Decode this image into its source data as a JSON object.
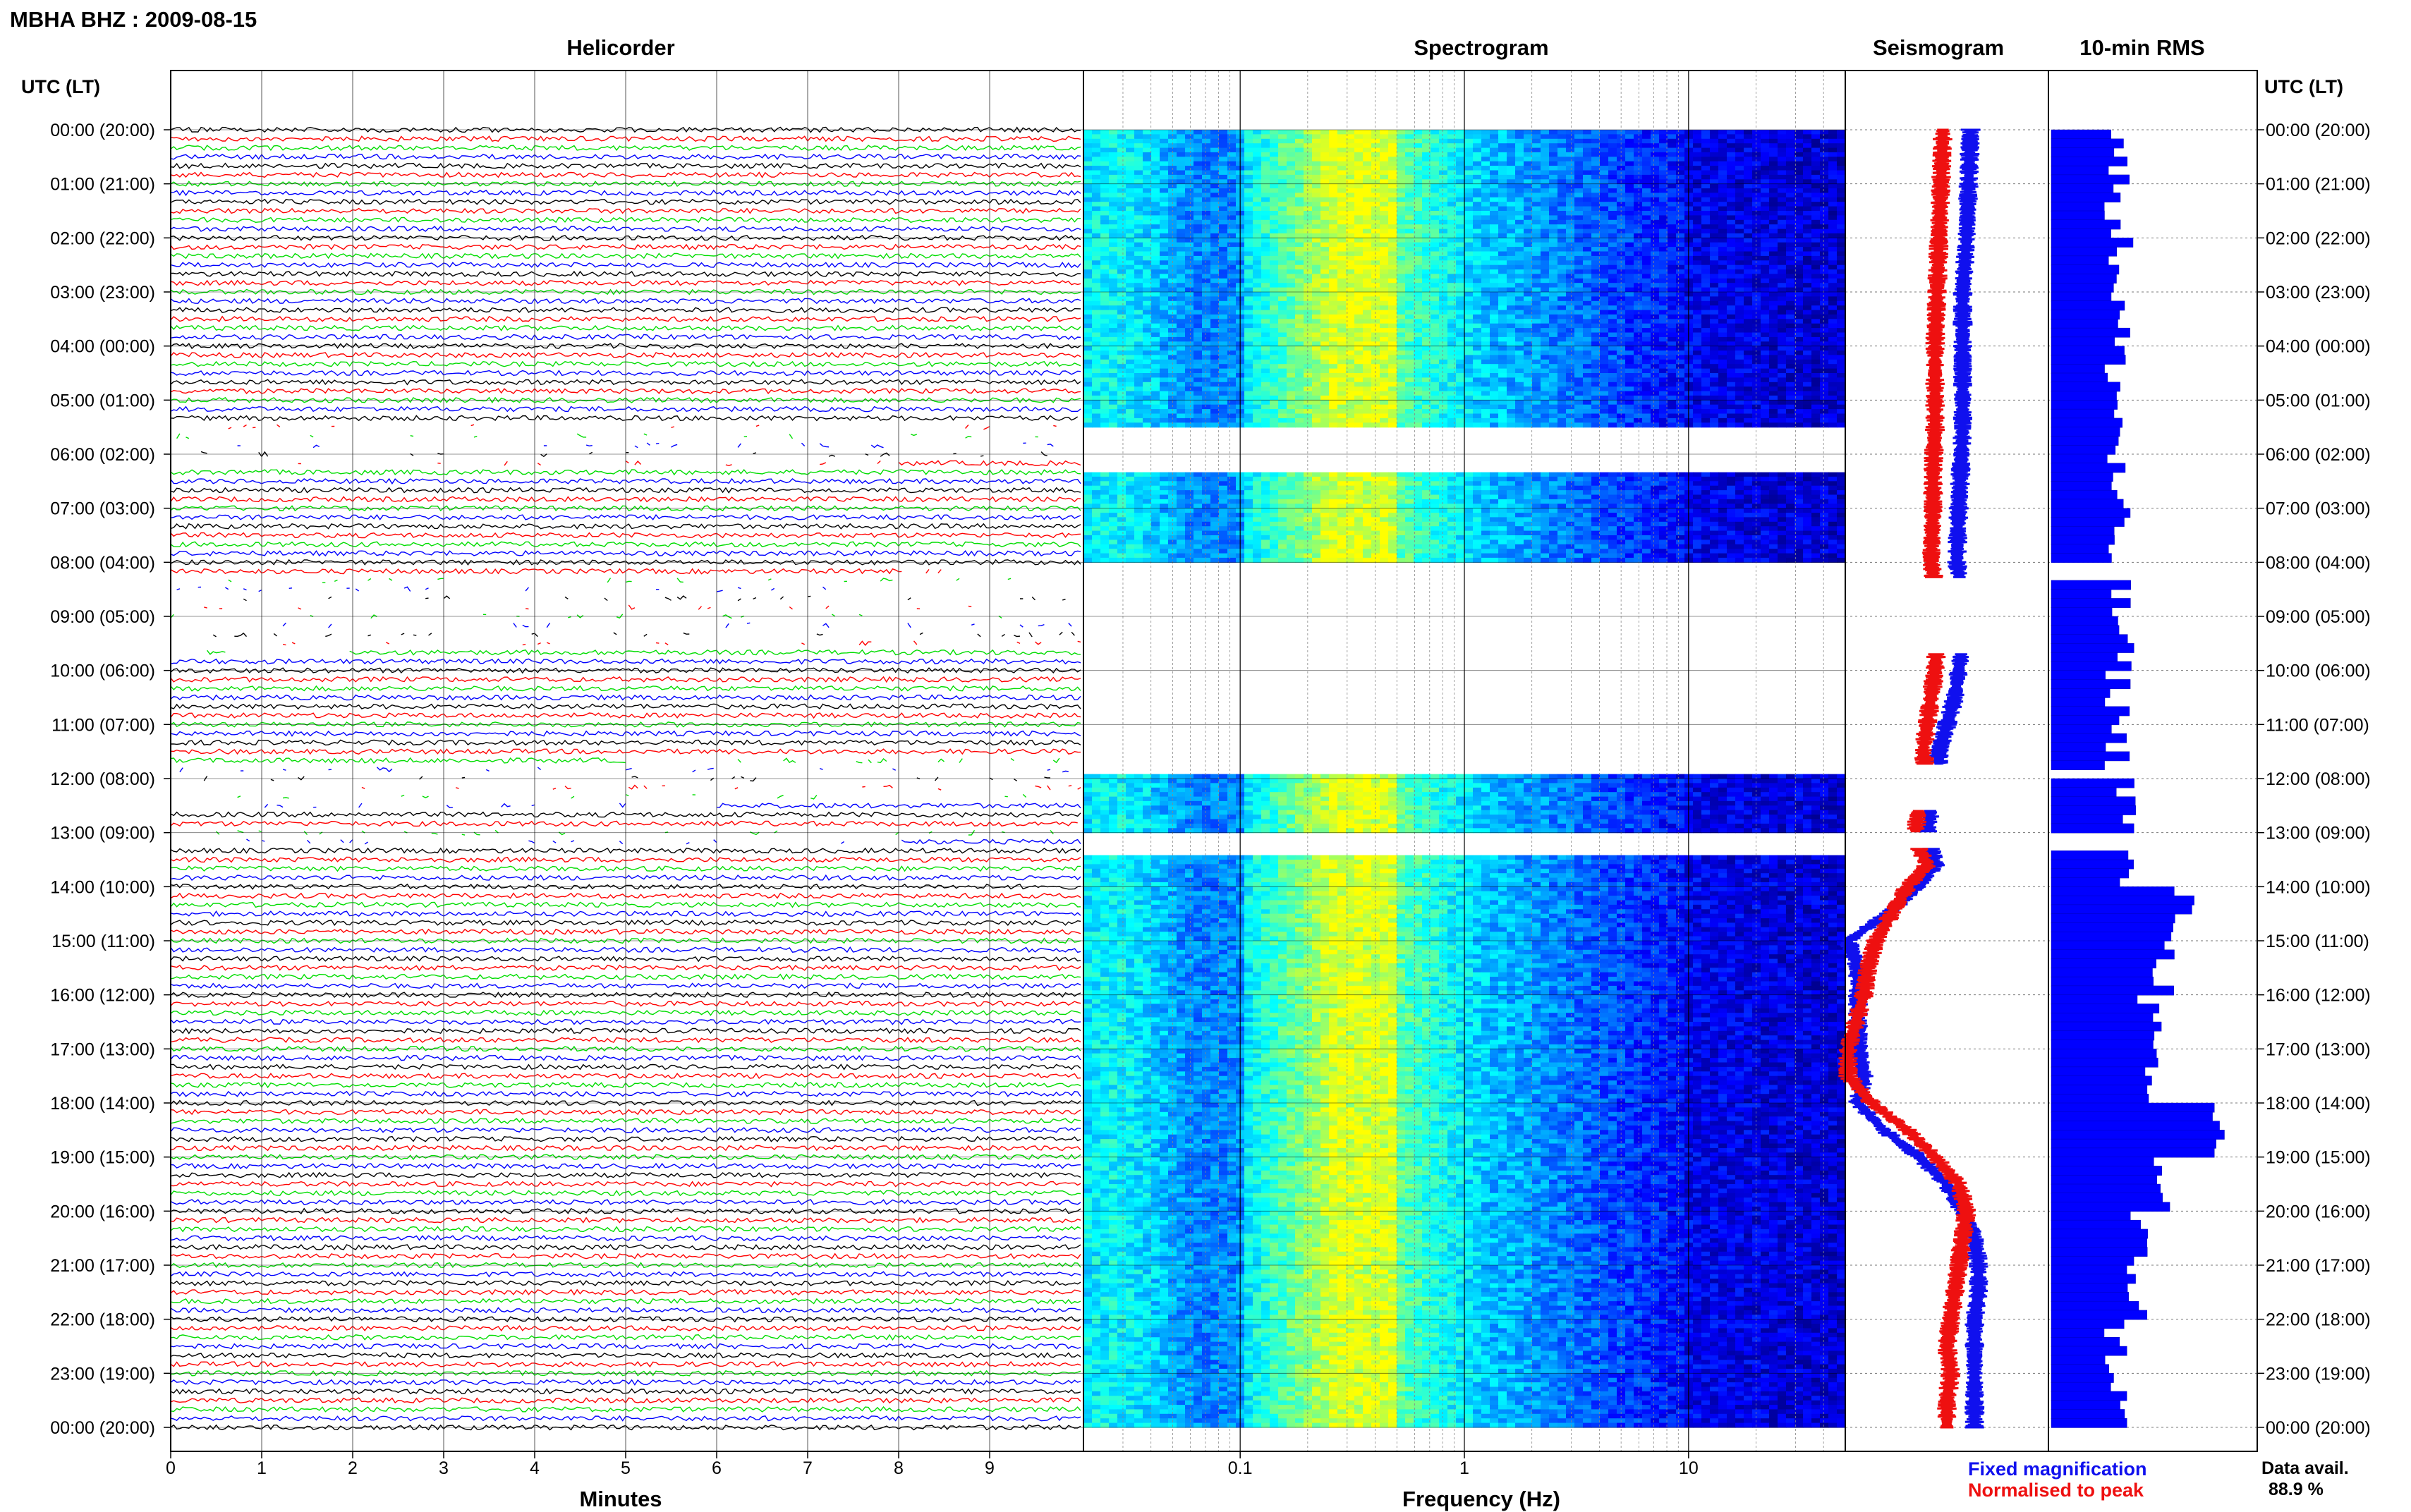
{
  "header": {
    "station_date": "MBHA BHZ : 2009-08-15",
    "utc_lt_heading": "UTC (LT)"
  },
  "panels": {
    "helicorder": "Helicorder",
    "spectrogram": "Spectrogram",
    "seismogram": "Seismogram",
    "rms": "10-min RMS"
  },
  "axis_labels": {
    "minutes": "Minutes",
    "frequency": "Frequency (Hz)"
  },
  "legend": {
    "fixed": "Fixed magnification",
    "normalised": "Normalised to peak",
    "fixed_color": "#1010ee",
    "normalised_color": "#ee1010"
  },
  "data_availability": {
    "label": "Data avail.",
    "value": "88.9 %"
  },
  "time_ticks": [
    "00:00 (20:00)",
    "01:00 (21:00)",
    "02:00 (22:00)",
    "03:00 (23:00)",
    "04:00 (00:00)",
    "05:00 (01:00)",
    "06:00 (02:00)",
    "07:00 (03:00)",
    "08:00 (04:00)",
    "09:00 (05:00)",
    "10:00 (06:00)",
    "11:00 (07:00)",
    "12:00 (08:00)",
    "13:00 (09:00)",
    "14:00 (10:00)",
    "15:00 (11:00)",
    "16:00 (12:00)",
    "17:00 (13:00)",
    "18:00 (14:00)",
    "19:00 (15:00)",
    "20:00 (16:00)",
    "21:00 (17:00)",
    "22:00 (18:00)",
    "23:00 (19:00)",
    "00:00 (20:00)"
  ],
  "chart_data": [
    {
      "type": "line",
      "title": "Helicorder",
      "xlabel": "Minutes",
      "x_ticks": [
        "0",
        "1",
        "2",
        "3",
        "4",
        "5",
        "6",
        "7",
        "8",
        "9"
      ],
      "xlim": [
        0,
        10
      ],
      "y_range_hours_utc": [
        0,
        24
      ],
      "traces_per_hour": 6,
      "trace_colors": [
        "#000000",
        "#ff0000",
        "#00dd00",
        "#0000ff"
      ],
      "gaps_utc_hours": [
        [
          5.5,
          6.3
        ],
        [
          8.3,
          9.7
        ],
        [
          11.75,
          12.6
        ],
        [
          13.0,
          13.3
        ]
      ]
    },
    {
      "type": "heatmap",
      "title": "Spectrogram",
      "xlabel": "Frequency (Hz)",
      "x_scale": "log",
      "x_ticks": [
        "0.1",
        "1",
        "10"
      ],
      "xlim": [
        0.02,
        50
      ],
      "y_range_hours_utc": [
        0,
        24
      ],
      "colormap": [
        "#000080",
        "#0000ff",
        "#0080ff",
        "#00ffff",
        "#80ff80",
        "#ffff00"
      ],
      "gaps_utc_hours": [
        [
          5.5,
          6.3
        ],
        [
          8.0,
          11.75
        ],
        [
          11.75,
          11.9
        ],
        [
          13.0,
          13.35
        ]
      ]
    },
    {
      "type": "line",
      "title": "Seismogram",
      "y_range_hours_utc": [
        0,
        24
      ],
      "series": [
        {
          "name": "Fixed magnification",
          "color": "#1010ee",
          "t": [
            0,
            1,
            2,
            3,
            4,
            5,
            5.5,
            6.3,
            7,
            8,
            8.4,
            9,
            9.5,
            10,
            10.5,
            11,
            11.5,
            12,
            12.5,
            13,
            13.3,
            13.6,
            14,
            14.5,
            15,
            15.5,
            16,
            16.5,
            17,
            17.5,
            18,
            18.5,
            19,
            19.5,
            20,
            20.5,
            21,
            21.5,
            22,
            22.5,
            23,
            23.5,
            24
          ],
          "level": [
            0.62,
            0.61,
            0.6,
            0.58,
            0.58,
            0.58,
            0.58,
            0.57,
            0.56,
            0.55,
            0.57,
            0.62,
            0.58,
            0.56,
            0.54,
            0.5,
            0.46,
            0.46,
            0.42,
            0.4,
            0.42,
            0.44,
            0.35,
            0.2,
            0.0,
            0.05,
            0.05,
            0.05,
            0.05,
            0.08,
            0.05,
            0.18,
            0.36,
            0.5,
            0.58,
            0.64,
            0.66,
            0.66,
            0.64,
            0.64,
            0.64,
            0.64,
            0.64
          ]
        },
        {
          "name": "Normalised to peak",
          "color": "#ee1010",
          "t": [
            0,
            1,
            2,
            3,
            4,
            5,
            5.5,
            6.3,
            7,
            8,
            8.4,
            9,
            9.5,
            10,
            10.5,
            11,
            11.5,
            12,
            12.5,
            13,
            13.3,
            13.6,
            14,
            14.5,
            15,
            15.5,
            16,
            16.5,
            17,
            17.5,
            18,
            18.5,
            19,
            19.5,
            20,
            20.5,
            21,
            21.5,
            22,
            22.5,
            23,
            23.5,
            24
          ],
          "level": [
            0.48,
            0.47,
            0.46,
            0.45,
            0.44,
            0.44,
            0.44,
            0.43,
            0.43,
            0.42,
            0.44,
            0.48,
            0.45,
            0.44,
            0.42,
            0.4,
            0.38,
            0.4,
            0.36,
            0.34,
            0.36,
            0.4,
            0.3,
            0.22,
            0.14,
            0.1,
            0.08,
            0.04,
            0.0,
            0.0,
            0.12,
            0.3,
            0.44,
            0.56,
            0.6,
            0.58,
            0.56,
            0.54,
            0.52,
            0.5,
            0.52,
            0.5,
            0.5
          ]
        }
      ]
    },
    {
      "type": "bar",
      "title": "10-min RMS",
      "orientation": "horizontal",
      "y_range_hours_utc": [
        0,
        24
      ],
      "bars_per_hour": 6,
      "bar_color": "#0000ff",
      "xlim": [
        0,
        1
      ],
      "gaps_utc_hours": [
        [
          8.0,
          8.3
        ],
        [
          11.75,
          11.85
        ],
        [
          13.0,
          13.3
        ]
      ],
      "hourly_rms": [
        0.33,
        0.33,
        0.34,
        0.33,
        0.32,
        0.33,
        0.31,
        0.32,
        0.33,
        0.34,
        0.33,
        0.33,
        0.38,
        0.36,
        0.64,
        0.56,
        0.48,
        0.46,
        0.82,
        0.54,
        0.42,
        0.42,
        0.32,
        0.33
      ]
    }
  ]
}
